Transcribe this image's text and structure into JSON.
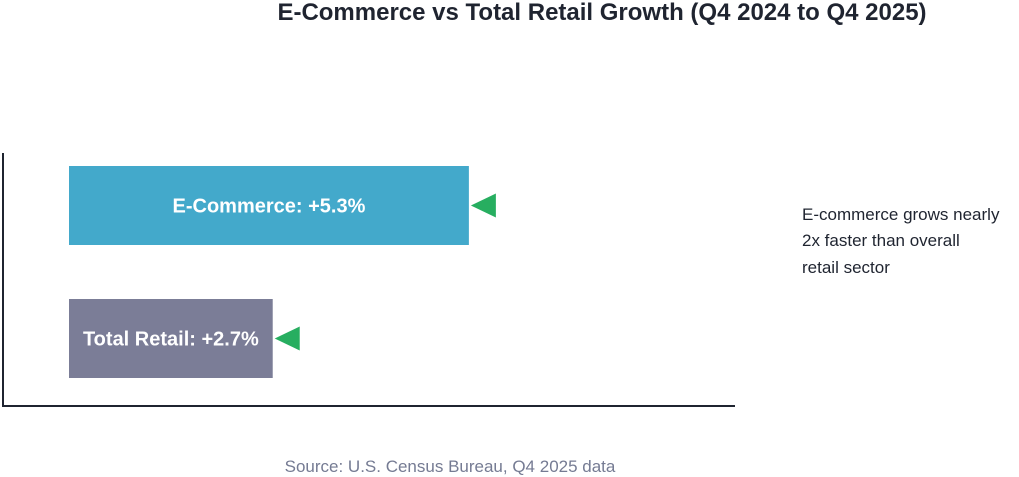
{
  "chart_data": {
    "type": "bar",
    "orientation": "horizontal",
    "title": "E-Commerce vs Total Retail Growth (Q4 2024 to Q4 2025)",
    "xlabel": "",
    "ylabel": "",
    "unit": "%",
    "grid": false,
    "categories": [
      "E-Commerce",
      "Total Retail"
    ],
    "values": [
      5.3,
      2.7
    ],
    "bar_labels": [
      "E-Commerce: +5.3%",
      "Total Retail: +2.7%"
    ],
    "bar_colors": [
      "#43a9cb",
      "#7b7d97"
    ],
    "marker": "green-triangle-pointer-icon",
    "marker_color": "#27ae60",
    "annotation_lines": [
      "E-commerce grows nearly",
      "2x faster than overall",
      "retail sector"
    ],
    "source": "Source: U.S. Census Bureau, Q4 2025 data"
  }
}
